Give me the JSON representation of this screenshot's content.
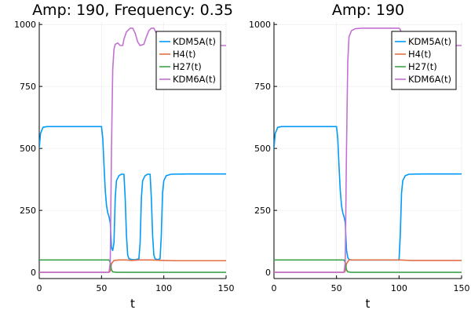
{
  "chart_data": [
    {
      "type": "line",
      "title": "Amp: 190, Frequency: 0.35",
      "xlabel": "t",
      "ylabel": "",
      "xlim": [
        0,
        150
      ],
      "ylim": [
        -25,
        1010
      ],
      "xticks": [
        "0",
        "50",
        "100",
        "150"
      ],
      "yticks": [
        "0",
        "250",
        "500",
        "750",
        "1000"
      ],
      "grid": true,
      "legend": "top-right",
      "series": [
        {
          "name": "KDM5A(t)",
          "color": "#009af9",
          "points": [
            [
              0,
              500
            ],
            [
              1,
              560
            ],
            [
              3,
              585
            ],
            [
              6,
              588
            ],
            [
              20,
              588
            ],
            [
              50,
              588
            ],
            [
              51,
              540
            ],
            [
              52,
              430
            ],
            [
              53,
              330
            ],
            [
              54,
              270
            ],
            [
              55,
              240
            ],
            [
              56,
              225
            ],
            [
              57,
              200
            ],
            [
              58,
              100
            ],
            [
              59,
              88
            ],
            [
              60,
              120
            ],
            [
              61,
              300
            ],
            [
              62,
              370
            ],
            [
              64,
              390
            ],
            [
              66,
              396
            ],
            [
              68,
              396
            ],
            [
              69,
              300
            ],
            [
              70,
              150
            ],
            [
              71,
              70
            ],
            [
              72,
              55
            ],
            [
              74,
              52
            ],
            [
              76,
              51
            ],
            [
              78,
              52
            ],
            [
              80,
              55
            ],
            [
              81,
              120
            ],
            [
              82,
              300
            ],
            [
              83,
              370
            ],
            [
              85,
              390
            ],
            [
              87,
              396
            ],
            [
              89,
              396
            ],
            [
              90,
              300
            ],
            [
              91,
              150
            ],
            [
              92,
              70
            ],
            [
              93,
              55
            ],
            [
              95,
              51
            ],
            [
              97,
              55
            ],
            [
              98,
              150
            ],
            [
              99,
              320
            ],
            [
              100,
              370
            ],
            [
              102,
              390
            ],
            [
              106,
              396
            ],
            [
              120,
              397
            ],
            [
              150,
              397
            ]
          ]
        },
        {
          "name": "H4(t)",
          "color": "#e26f46",
          "points": [
            [
              0,
              0
            ],
            [
              50,
              0
            ],
            [
              56,
              0
            ],
            [
              57,
              5
            ],
            [
              58,
              35
            ],
            [
              60,
              48
            ],
            [
              64,
              50
            ],
            [
              70,
              50
            ],
            [
              74,
              48
            ],
            [
              80,
              50
            ],
            [
              90,
              50
            ],
            [
              100,
              48
            ],
            [
              110,
              47
            ],
            [
              150,
              47
            ]
          ]
        },
        {
          "name": "H27(t)",
          "color": "#3da44d",
          "points": [
            [
              0,
              50
            ],
            [
              50,
              50
            ],
            [
              56,
              50
            ],
            [
              57,
              40
            ],
            [
              58,
              10
            ],
            [
              59,
              2
            ],
            [
              62,
              0
            ],
            [
              150,
              0
            ]
          ]
        },
        {
          "name": "KDM6A(t)",
          "color": "#c271d2",
          "points": [
            [
              0,
              0
            ],
            [
              56,
              0
            ],
            [
              57,
              40
            ],
            [
              58,
              500
            ],
            [
              59,
              820
            ],
            [
              60,
              900
            ],
            [
              61,
              920
            ],
            [
              63,
              925
            ],
            [
              65,
              915
            ],
            [
              67,
              915
            ],
            [
              68,
              940
            ],
            [
              70,
              970
            ],
            [
              73,
              985
            ],
            [
              75,
              985
            ],
            [
              77,
              965
            ],
            [
              79,
              930
            ],
            [
              81,
              915
            ],
            [
              84,
              920
            ],
            [
              86,
              950
            ],
            [
              88,
              975
            ],
            [
              90,
              985
            ],
            [
              92,
              985
            ],
            [
              94,
              965
            ],
            [
              96,
              935
            ],
            [
              98,
              920
            ],
            [
              100,
              915
            ],
            [
              110,
              915
            ],
            [
              150,
              915
            ]
          ]
        }
      ]
    },
    {
      "type": "line",
      "title": "Amp: 190",
      "xlabel": "t",
      "ylabel": "",
      "xlim": [
        0,
        150
      ],
      "ylim": [
        -25,
        1010
      ],
      "xticks": [
        "0",
        "50",
        "100",
        "150"
      ],
      "yticks": [
        "0",
        "250",
        "500",
        "750",
        "1000"
      ],
      "grid": true,
      "legend": "top-right",
      "series": [
        {
          "name": "KDM5A(t)",
          "color": "#009af9",
          "points": [
            [
              0,
              500
            ],
            [
              1,
              560
            ],
            [
              3,
              585
            ],
            [
              6,
              588
            ],
            [
              20,
              588
            ],
            [
              50,
              588
            ],
            [
              51,
              540
            ],
            [
              52,
              430
            ],
            [
              53,
              330
            ],
            [
              54,
              270
            ],
            [
              55,
              240
            ],
            [
              56,
              225
            ],
            [
              57,
              200
            ],
            [
              58,
              90
            ],
            [
              59,
              60
            ],
            [
              60,
              52
            ],
            [
              62,
              50
            ],
            [
              70,
              50
            ],
            [
              90,
              50
            ],
            [
              100,
              50
            ],
            [
              101,
              150
            ],
            [
              102,
              320
            ],
            [
              103,
              370
            ],
            [
              105,
              390
            ],
            [
              108,
              396
            ],
            [
              120,
              397
            ],
            [
              150,
              397
            ]
          ]
        },
        {
          "name": "H4(t)",
          "color": "#e26f46",
          "points": [
            [
              0,
              0
            ],
            [
              56,
              0
            ],
            [
              57,
              5
            ],
            [
              58,
              35
            ],
            [
              60,
              50
            ],
            [
              70,
              50
            ],
            [
              100,
              50
            ],
            [
              110,
              48
            ],
            [
              150,
              48
            ]
          ]
        },
        {
          "name": "H27(t)",
          "color": "#3da44d",
          "points": [
            [
              0,
              50
            ],
            [
              56,
              50
            ],
            [
              57,
              40
            ],
            [
              58,
              10
            ],
            [
              59,
              2
            ],
            [
              62,
              0
            ],
            [
              150,
              0
            ]
          ]
        },
        {
          "name": "KDM6A(t)",
          "color": "#c271d2",
          "points": [
            [
              0,
              0
            ],
            [
              56,
              0
            ],
            [
              57,
              40
            ],
            [
              58,
              500
            ],
            [
              59,
              850
            ],
            [
              60,
              950
            ],
            [
              62,
              975
            ],
            [
              65,
              983
            ],
            [
              70,
              985
            ],
            [
              100,
              985
            ],
            [
              101,
              980
            ],
            [
              102,
              960
            ],
            [
              103,
              935
            ],
            [
              105,
              920
            ],
            [
              110,
              915
            ],
            [
              150,
              915
            ]
          ]
        }
      ]
    }
  ]
}
